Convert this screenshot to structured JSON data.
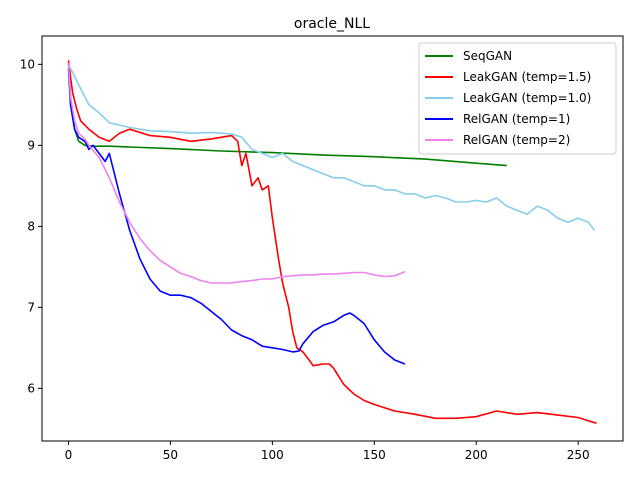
{
  "chart_data": {
    "type": "line",
    "title": "oracle_NLL",
    "xlabel": "",
    "ylabel": "",
    "xlim": [
      -13,
      272
    ],
    "ylim": [
      5.35,
      10.35
    ],
    "xticks": [
      0,
      50,
      100,
      150,
      200,
      250
    ],
    "yticks": [
      6,
      7,
      8,
      9,
      10
    ],
    "grid": false,
    "legend_position": "top-right",
    "series": [
      {
        "name": "SeqGAN",
        "color": "#008000",
        "x": [
          0,
          1,
          2,
          3,
          5,
          8,
          12,
          20,
          30,
          50,
          75,
          100,
          125,
          150,
          175,
          200,
          215
        ],
        "y": [
          10.02,
          9.6,
          9.35,
          9.2,
          9.05,
          9.0,
          8.99,
          8.99,
          8.98,
          8.96,
          8.93,
          8.91,
          8.88,
          8.86,
          8.83,
          8.78,
          8.75
        ]
      },
      {
        "name": "LeakGAN (temp=1.5)",
        "color": "#ff0000",
        "x": [
          0,
          1,
          2,
          4,
          6,
          8,
          10,
          15,
          20,
          25,
          30,
          40,
          50,
          60,
          70,
          80,
          83,
          85,
          87,
          90,
          93,
          95,
          98,
          100,
          103,
          105,
          108,
          110,
          112,
          115,
          118,
          120,
          125,
          128,
          130,
          135,
          140,
          145,
          150,
          160,
          170,
          180,
          190,
          200,
          210,
          220,
          230,
          240,
          250,
          255,
          259
        ],
        "y": [
          10.05,
          9.85,
          9.65,
          9.45,
          9.3,
          9.25,
          9.2,
          9.1,
          9.05,
          9.15,
          9.2,
          9.12,
          9.1,
          9.05,
          9.08,
          9.12,
          9.05,
          8.75,
          8.9,
          8.5,
          8.6,
          8.45,
          8.5,
          8.1,
          7.6,
          7.3,
          7.0,
          6.7,
          6.5,
          6.45,
          6.35,
          6.28,
          6.3,
          6.3,
          6.25,
          6.05,
          5.93,
          5.85,
          5.8,
          5.72,
          5.68,
          5.63,
          5.63,
          5.65,
          5.72,
          5.68,
          5.7,
          5.67,
          5.64,
          5.6,
          5.57
        ]
      },
      {
        "name": "LeakGAN (temp=1.0)",
        "color": "#87ceeb",
        "x": [
          0,
          1,
          3,
          5,
          8,
          10,
          15,
          20,
          25,
          30,
          40,
          50,
          60,
          70,
          80,
          85,
          90,
          95,
          100,
          105,
          110,
          115,
          120,
          125,
          130,
          135,
          140,
          145,
          150,
          155,
          160,
          165,
          170,
          175,
          180,
          185,
          190,
          195,
          200,
          205,
          210,
          215,
          220,
          225,
          230,
          235,
          240,
          245,
          250,
          255,
          258
        ],
        "y": [
          10.0,
          9.95,
          9.85,
          9.75,
          9.6,
          9.5,
          9.4,
          9.28,
          9.25,
          9.22,
          9.18,
          9.17,
          9.15,
          9.16,
          9.14,
          9.1,
          8.95,
          8.9,
          8.85,
          8.9,
          8.8,
          8.75,
          8.7,
          8.65,
          8.6,
          8.6,
          8.55,
          8.5,
          8.5,
          8.45,
          8.45,
          8.4,
          8.4,
          8.35,
          8.38,
          8.35,
          8.3,
          8.3,
          8.32,
          8.3,
          8.35,
          8.25,
          8.2,
          8.15,
          8.25,
          8.2,
          8.1,
          8.05,
          8.1,
          8.05,
          7.95
        ]
      },
      {
        "name": "RelGAN (temp=1)",
        "color": "#0000ff",
        "x": [
          0,
          1,
          3,
          5,
          8,
          10,
          12,
          15,
          18,
          20,
          25,
          30,
          35,
          40,
          45,
          50,
          55,
          60,
          65,
          70,
          75,
          80,
          85,
          90,
          95,
          100,
          105,
          110,
          113,
          115,
          120,
          125,
          130,
          135,
          138,
          140,
          145,
          150,
          155,
          160,
          163,
          165
        ],
        "y": [
          9.95,
          9.5,
          9.2,
          9.1,
          9.05,
          8.95,
          9.0,
          8.9,
          8.8,
          8.9,
          8.4,
          7.95,
          7.6,
          7.35,
          7.2,
          7.15,
          7.15,
          7.12,
          7.05,
          6.95,
          6.85,
          6.72,
          6.65,
          6.6,
          6.52,
          6.5,
          6.48,
          6.45,
          6.46,
          6.55,
          6.7,
          6.78,
          6.82,
          6.9,
          6.93,
          6.9,
          6.8,
          6.6,
          6.45,
          6.35,
          6.32,
          6.3
        ]
      },
      {
        "name": "RelGAN (temp=2)",
        "color": "#ee82ee",
        "x": [
          0,
          1,
          3,
          5,
          8,
          10,
          15,
          20,
          25,
          30,
          35,
          40,
          45,
          50,
          55,
          60,
          65,
          70,
          75,
          80,
          85,
          90,
          95,
          100,
          105,
          110,
          115,
          120,
          125,
          130,
          135,
          140,
          145,
          150,
          155,
          160,
          165
        ],
        "y": [
          10.02,
          9.6,
          9.3,
          9.15,
          9.08,
          9.0,
          8.85,
          8.6,
          8.3,
          8.05,
          7.85,
          7.7,
          7.58,
          7.5,
          7.42,
          7.38,
          7.33,
          7.3,
          7.3,
          7.3,
          7.32,
          7.33,
          7.35,
          7.35,
          7.38,
          7.39,
          7.4,
          7.4,
          7.41,
          7.41,
          7.42,
          7.43,
          7.43,
          7.4,
          7.38,
          7.39,
          7.44
        ]
      }
    ]
  }
}
